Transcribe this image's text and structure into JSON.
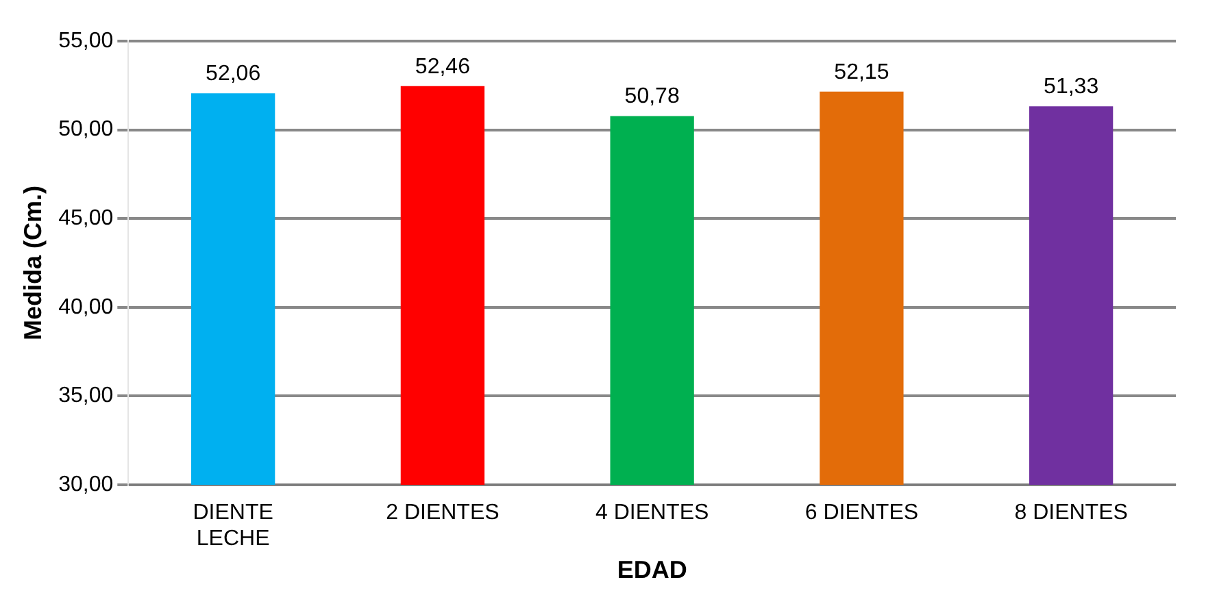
{
  "chart_data": {
    "type": "bar",
    "xlabel": "EDAD",
    "ylabel": "Medida (Cm.)",
    "categories": [
      "DIENTE LECHE",
      "2 DIENTES",
      "4 DIENTES",
      "6 DIENTES",
      "8 DIENTES"
    ],
    "values": [
      52.06,
      52.46,
      50.78,
      52.15,
      51.33
    ],
    "value_labels": [
      "52,06",
      "52,46",
      "50,78",
      "52,15",
      "51,33"
    ],
    "colors": [
      "#00b0f0",
      "#ff0000",
      "#00b050",
      "#e36c09",
      "#7030a0"
    ],
    "ylim": [
      30,
      55
    ],
    "yticks": [
      {
        "value": 30,
        "label": "30,00"
      },
      {
        "value": 35,
        "label": "35,00"
      },
      {
        "value": 40,
        "label": "40,00"
      },
      {
        "value": 45,
        "label": "45,00"
      },
      {
        "value": 50,
        "label": "50,00"
      },
      {
        "value": 55,
        "label": "55,00"
      }
    ],
    "grid": "y"
  }
}
